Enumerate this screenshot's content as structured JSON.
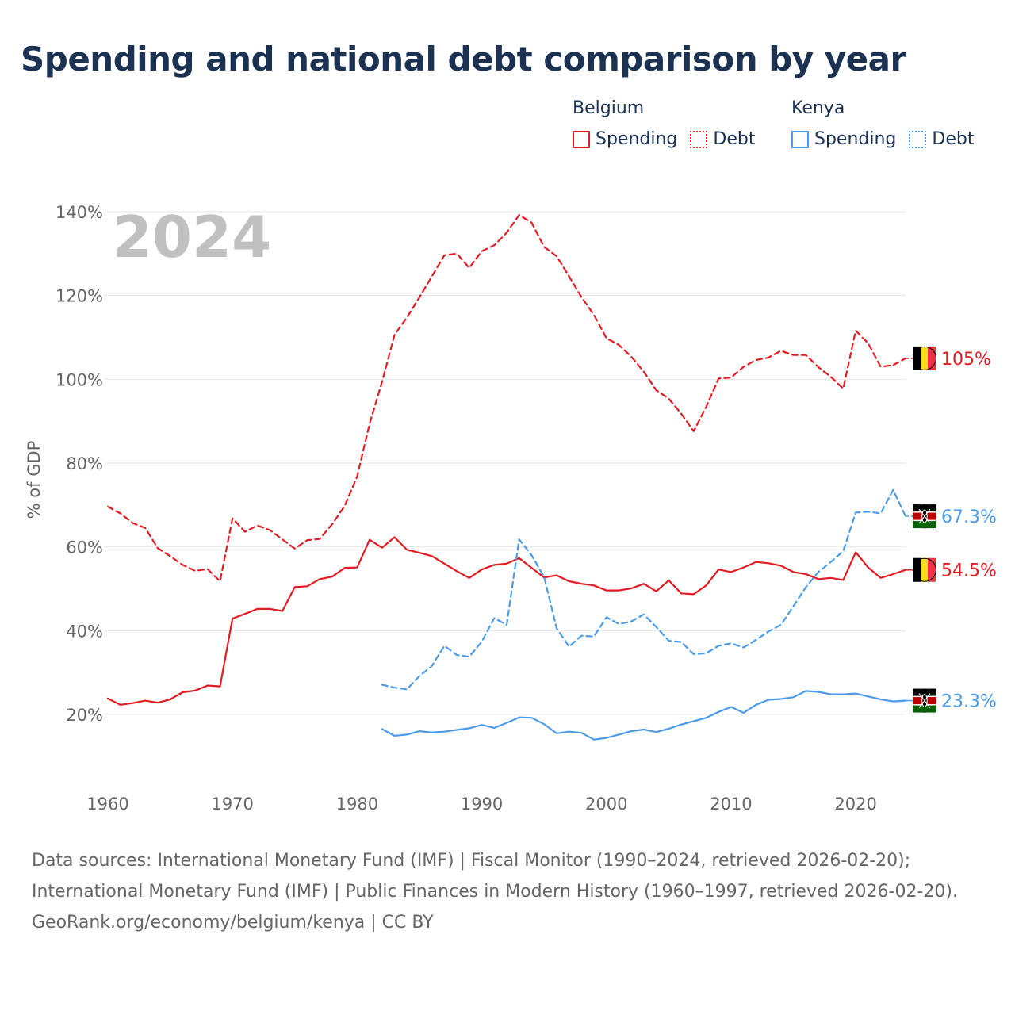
{
  "title": "Spending and national debt comparison by year",
  "legend": {
    "belgium": {
      "country": "Belgium",
      "spending": "Spending",
      "debt": "Debt"
    },
    "kenya": {
      "country": "Kenya",
      "spending": "Spending",
      "debt": "Debt"
    }
  },
  "footer": {
    "sources": "Data sources: International Monetary Fund (IMF) | Fiscal Monitor (1990–2024, retrieved 2026-02-20); International Monetary Fund (IMF) | Public Finances in Modern History (1960–1997, retrieved 2026-02-20).",
    "credit": "GeoRank.org/economy/belgium/kenya | CC BY"
  },
  "colors": {
    "belgium": "#e31b23",
    "kenya": "#4c9be8"
  },
  "chart_data": {
    "type": "line",
    "title": "Spending and national debt comparison by year",
    "watermark_year": "2024",
    "xlabel": "",
    "ylabel": "% of GDP",
    "xlim": [
      1960,
      2025
    ],
    "ylim": [
      8,
      142
    ],
    "x_ticks": [
      1960,
      1970,
      1980,
      1990,
      2000,
      2010,
      2020
    ],
    "y_ticks": [
      20,
      40,
      60,
      80,
      100,
      120,
      140
    ],
    "y_tick_labels": [
      "20%",
      "40%",
      "60%",
      "80%",
      "100%",
      "120%",
      "140%"
    ],
    "grid": true,
    "series": [
      {
        "name": "Belgium Spending",
        "country": "belgium",
        "style": "solid",
        "end_label": "54.5%",
        "end_value": 54.5,
        "points": [
          [
            1960,
            23.8
          ],
          [
            1961,
            22.3
          ],
          [
            1962,
            22.7
          ],
          [
            1963,
            23.3
          ],
          [
            1964,
            22.8
          ],
          [
            1965,
            23.6
          ],
          [
            1966,
            25.3
          ],
          [
            1967,
            25.7
          ],
          [
            1968,
            26.9
          ],
          [
            1969,
            26.7
          ],
          [
            1970,
            42.9
          ],
          [
            1971,
            44
          ],
          [
            1972,
            45.2
          ],
          [
            1973,
            45.2
          ],
          [
            1974,
            44.7
          ],
          [
            1975,
            50.4
          ],
          [
            1976,
            50.6
          ],
          [
            1977,
            52.3
          ],
          [
            1978,
            52.9
          ],
          [
            1979,
            55
          ],
          [
            1980,
            55.1
          ],
          [
            1981,
            61.7
          ],
          [
            1982,
            59.8
          ],
          [
            1983,
            62.3
          ],
          [
            1984,
            59.3
          ],
          [
            1985,
            58.6
          ],
          [
            1986,
            57.8
          ],
          [
            1987,
            56
          ],
          [
            1988,
            54.2
          ],
          [
            1989,
            52.6
          ],
          [
            1990,
            54.6
          ],
          [
            1991,
            55.7
          ],
          [
            1992,
            56
          ],
          [
            1993,
            57.3
          ],
          [
            1994,
            55
          ],
          [
            1995,
            52.7
          ],
          [
            1996,
            53.2
          ],
          [
            1997,
            51.8
          ],
          [
            1998,
            51.2
          ],
          [
            1999,
            50.8
          ],
          [
            2000,
            49.6
          ],
          [
            2001,
            49.6
          ],
          [
            2002,
            50.1
          ],
          [
            2003,
            51.2
          ],
          [
            2004,
            49.4
          ],
          [
            2005,
            52
          ],
          [
            2006,
            48.9
          ],
          [
            2007,
            48.7
          ],
          [
            2008,
            50.8
          ],
          [
            2009,
            54.6
          ],
          [
            2010,
            54
          ],
          [
            2011,
            55.1
          ],
          [
            2012,
            56.4
          ],
          [
            2013,
            56.1
          ],
          [
            2014,
            55.5
          ],
          [
            2015,
            54
          ],
          [
            2016,
            53.5
          ],
          [
            2017,
            52.3
          ],
          [
            2018,
            52.6
          ],
          [
            2019,
            52.1
          ],
          [
            2020,
            58.7
          ],
          [
            2021,
            55.1
          ],
          [
            2022,
            52.6
          ],
          [
            2023,
            53.5
          ],
          [
            2024,
            54.5
          ]
        ]
      },
      {
        "name": "Belgium Debt",
        "country": "belgium",
        "style": "dashed",
        "end_label": "105%",
        "end_value": 105,
        "points": [
          [
            1960,
            69.6
          ],
          [
            1961,
            68
          ],
          [
            1962,
            65.7
          ],
          [
            1963,
            64.5
          ],
          [
            1964,
            59.7
          ],
          [
            1965,
            57.8
          ],
          [
            1966,
            55.7
          ],
          [
            1967,
            54.3
          ],
          [
            1968,
            54.7
          ],
          [
            1969,
            51.8
          ],
          [
            1970,
            66.8
          ],
          [
            1971,
            63.6
          ],
          [
            1972,
            65.1
          ],
          [
            1973,
            64
          ],
          [
            1974,
            61.8
          ],
          [
            1975,
            59.6
          ],
          [
            1976,
            61.6
          ],
          [
            1977,
            61.9
          ],
          [
            1978,
            65.4
          ],
          [
            1979,
            69.8
          ],
          [
            1980,
            76.8
          ],
          [
            1981,
            89.4
          ],
          [
            1982,
            99.4
          ],
          [
            1983,
            110.6
          ],
          [
            1984,
            114.8
          ],
          [
            1985,
            119.6
          ],
          [
            1986,
            124.6
          ],
          [
            1987,
            129.6
          ],
          [
            1988,
            130
          ],
          [
            1989,
            126.6
          ],
          [
            1990,
            130.6
          ],
          [
            1991,
            132
          ],
          [
            1992,
            135
          ],
          [
            1993,
            139.2
          ],
          [
            1994,
            137.4
          ],
          [
            1995,
            131.6
          ],
          [
            1996,
            129.4
          ],
          [
            1997,
            124.6
          ],
          [
            1998,
            119.6
          ],
          [
            1999,
            115.4
          ],
          [
            2000,
            109.8
          ],
          [
            2001,
            108.2
          ],
          [
            2002,
            105.4
          ],
          [
            2003,
            101.8
          ],
          [
            2004,
            97.4
          ],
          [
            2005,
            95.4
          ],
          [
            2006,
            91.8
          ],
          [
            2007,
            87.6
          ],
          [
            2008,
            93.4
          ],
          [
            2009,
            100.2
          ],
          [
            2010,
            100.4
          ],
          [
            2011,
            103
          ],
          [
            2012,
            104.6
          ],
          [
            2013,
            105.2
          ],
          [
            2014,
            106.8
          ],
          [
            2015,
            105.8
          ],
          [
            2016,
            105.8
          ],
          [
            2017,
            102.9
          ],
          [
            2018,
            100.6
          ],
          [
            2019,
            97.8
          ],
          [
            2020,
            111.6
          ],
          [
            2021,
            108.6
          ],
          [
            2022,
            103
          ],
          [
            2023,
            103.4
          ],
          [
            2024,
            105
          ]
        ]
      },
      {
        "name": "Kenya Spending",
        "country": "kenya",
        "style": "solid",
        "end_label": "23.3%",
        "end_value": 23.3,
        "points": [
          [
            1982,
            16.5
          ],
          [
            1983,
            14.9
          ],
          [
            1984,
            15.2
          ],
          [
            1985,
            16
          ],
          [
            1986,
            15.7
          ],
          [
            1987,
            15.9
          ],
          [
            1988,
            16.3
          ],
          [
            1989,
            16.7
          ],
          [
            1990,
            17.5
          ],
          [
            1991,
            16.8
          ],
          [
            1992,
            18
          ],
          [
            1993,
            19.3
          ],
          [
            1994,
            19.2
          ],
          [
            1995,
            17.7
          ],
          [
            1996,
            15.5
          ],
          [
            1997,
            15.9
          ],
          [
            1998,
            15.6
          ],
          [
            1999,
            14
          ],
          [
            2000,
            14.4
          ],
          [
            2001,
            15.2
          ],
          [
            2002,
            16
          ],
          [
            2003,
            16.4
          ],
          [
            2004,
            15.8
          ],
          [
            2005,
            16.6
          ],
          [
            2006,
            17.6
          ],
          [
            2007,
            18.4
          ],
          [
            2008,
            19.2
          ],
          [
            2009,
            20.6
          ],
          [
            2010,
            21.8
          ],
          [
            2011,
            20.4
          ],
          [
            2012,
            22.3
          ],
          [
            2013,
            23.5
          ],
          [
            2014,
            23.7
          ],
          [
            2015,
            24.1
          ],
          [
            2016,
            25.6
          ],
          [
            2017,
            25.4
          ],
          [
            2018,
            24.8
          ],
          [
            2019,
            24.8
          ],
          [
            2020,
            25
          ],
          [
            2021,
            24.3
          ],
          [
            2022,
            23.6
          ],
          [
            2023,
            23.1
          ],
          [
            2024,
            23.3
          ]
        ]
      },
      {
        "name": "Kenya Debt",
        "country": "kenya",
        "style": "dashed",
        "end_label": "67.3%",
        "end_value": 67.3,
        "points": [
          [
            1982,
            27.1
          ],
          [
            1983,
            26.4
          ],
          [
            1984,
            26
          ],
          [
            1985,
            29.2
          ],
          [
            1986,
            31.6
          ],
          [
            1987,
            36.4
          ],
          [
            1988,
            34.2
          ],
          [
            1989,
            33.8
          ],
          [
            1990,
            37.4
          ],
          [
            1991,
            43
          ],
          [
            1992,
            41.4
          ],
          [
            1993,
            61.8
          ],
          [
            1994,
            58
          ],
          [
            1995,
            52.8
          ],
          [
            1996,
            40.6
          ],
          [
            1997,
            36.2
          ],
          [
            1998,
            38.8
          ],
          [
            1999,
            38.6
          ],
          [
            2000,
            43.2
          ],
          [
            2001,
            41.6
          ],
          [
            2002,
            42.2
          ],
          [
            2003,
            43.9
          ],
          [
            2004,
            40.9
          ],
          [
            2005,
            37.6
          ],
          [
            2006,
            37.3
          ],
          [
            2007,
            34.4
          ],
          [
            2008,
            34.6
          ],
          [
            2009,
            36.4
          ],
          [
            2010,
            37
          ],
          [
            2011,
            36
          ],
          [
            2012,
            37.8
          ],
          [
            2013,
            39.8
          ],
          [
            2014,
            41.4
          ],
          [
            2015,
            45.8
          ],
          [
            2016,
            50.4
          ],
          [
            2017,
            54
          ],
          [
            2018,
            56.4
          ],
          [
            2019,
            59
          ],
          [
            2020,
            68.2
          ],
          [
            2021,
            68.4
          ],
          [
            2022,
            68
          ],
          [
            2023,
            73.6
          ],
          [
            2024,
            67.3
          ]
        ]
      }
    ]
  }
}
